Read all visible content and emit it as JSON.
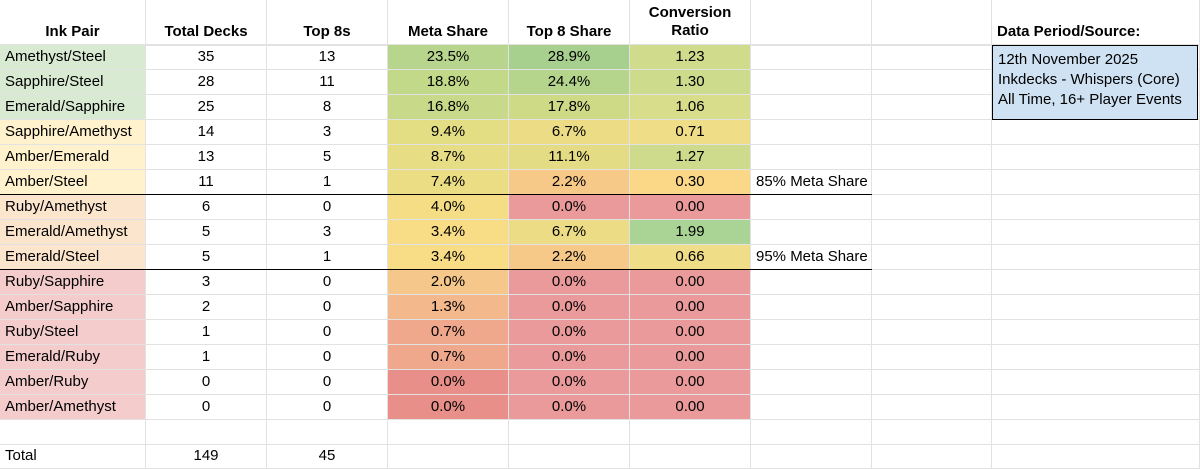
{
  "headers": {
    "ink_pair": "Ink Pair",
    "total_decks": "Total Decks",
    "top8s": "Top 8s",
    "meta_share": "Meta Share",
    "top8_share": "Top 8 Share",
    "conversion_ratio_line1": "Conversion",
    "conversion_ratio_line2": "Ratio"
  },
  "rows": [
    {
      "pair": "Amethyst/Steel",
      "decks": "35",
      "top8s": "13",
      "meta": "23.5%",
      "top8share": "28.9%",
      "ratio": "1.23"
    },
    {
      "pair": "Sapphire/Steel",
      "decks": "28",
      "top8s": "11",
      "meta": "18.8%",
      "top8share": "24.4%",
      "ratio": "1.30"
    },
    {
      "pair": "Emerald/Sapphire",
      "decks": "25",
      "top8s": "8",
      "meta": "16.8%",
      "top8share": "17.8%",
      "ratio": "1.06"
    },
    {
      "pair": "Sapphire/Amethyst",
      "decks": "14",
      "top8s": "3",
      "meta": "9.4%",
      "top8share": "6.7%",
      "ratio": "0.71"
    },
    {
      "pair": "Amber/Emerald",
      "decks": "13",
      "top8s": "5",
      "meta": "8.7%",
      "top8share": "11.1%",
      "ratio": "1.27"
    },
    {
      "pair": "Amber/Steel",
      "decks": "11",
      "top8s": "1",
      "meta": "7.4%",
      "top8share": "2.2%",
      "ratio": "0.30"
    },
    {
      "pair": "Ruby/Amethyst",
      "decks": "6",
      "top8s": "0",
      "meta": "4.0%",
      "top8share": "0.0%",
      "ratio": "0.00"
    },
    {
      "pair": "Emerald/Amethyst",
      "decks": "5",
      "top8s": "3",
      "meta": "3.4%",
      "top8share": "6.7%",
      "ratio": "1.99"
    },
    {
      "pair": "Emerald/Steel",
      "decks": "5",
      "top8s": "1",
      "meta": "3.4%",
      "top8share": "2.2%",
      "ratio": "0.66"
    },
    {
      "pair": "Ruby/Sapphire",
      "decks": "3",
      "top8s": "0",
      "meta": "2.0%",
      "top8share": "0.0%",
      "ratio": "0.00"
    },
    {
      "pair": "Amber/Sapphire",
      "decks": "2",
      "top8s": "0",
      "meta": "1.3%",
      "top8share": "0.0%",
      "ratio": "0.00"
    },
    {
      "pair": "Ruby/Steel",
      "decks": "1",
      "top8s": "0",
      "meta": "0.7%",
      "top8share": "0.0%",
      "ratio": "0.00"
    },
    {
      "pair": "Emerald/Ruby",
      "decks": "1",
      "top8s": "0",
      "meta": "0.7%",
      "top8share": "0.0%",
      "ratio": "0.00"
    },
    {
      "pair": "Amber/Ruby",
      "decks": "0",
      "top8s": "0",
      "meta": "0.0%",
      "top8share": "0.0%",
      "ratio": "0.00"
    },
    {
      "pair": "Amber/Amethyst",
      "decks": "0",
      "top8s": "0",
      "meta": "0.0%",
      "top8share": "0.0%",
      "ratio": "0.00"
    }
  ],
  "totals": {
    "label": "Total",
    "decks": "149",
    "top8s": "45"
  },
  "annotations": {
    "meta85": "85% Meta Share",
    "meta95": "95% Meta Share"
  },
  "info": {
    "title": "Data Period/Source:",
    "line1": "12th November 2025",
    "line2": "Inkdecks - Whispers (Core)",
    "line3": "All Time, 16+ Player Events"
  },
  "colors": {
    "pair_fill": [
      "#d9ead3",
      "#d9ead3",
      "#d9ead3",
      "#fff2cc",
      "#fff2cc",
      "#fff2cc",
      "#fce5cd",
      "#fce5cd",
      "#fce5cd",
      "#f4cccc",
      "#f4cccc",
      "#f4cccc",
      "#f4cccc",
      "#f4cccc",
      "#f4cccc"
    ],
    "meta_fill": [
      "#b7d58c",
      "#c3d98a",
      "#c8da89",
      "#e3dd84",
      "#e6dd84",
      "#ebdd84",
      "#f5dd86",
      "#f8dc86",
      "#f8dc86",
      "#f5c78a",
      "#f3b88b",
      "#f0a88c",
      "#f0a88c",
      "#e88f89",
      "#e88f89"
    ],
    "top8_fill": [
      "#a7d08e",
      "#b6d58c",
      "#cfda87",
      "#ecdc85",
      "#e4db85",
      "#f6c989",
      "#ea9a9a",
      "#ecdc85",
      "#f6c989",
      "#ea9a9a",
      "#ea9a9a",
      "#ea9a9a",
      "#ea9a9a",
      "#ea9a9a",
      "#ea9a9a"
    ],
    "ratio_fill": [
      "#d0dc8c",
      "#ccdb8c",
      "#d8dd8b",
      "#f0dd88",
      "#cedb8c",
      "#fbd888",
      "#ea9a9a",
      "#aad496",
      "#f0dd88",
      "#ea9a9a",
      "#ea9a9a",
      "#ea9a9a",
      "#ea9a9a",
      "#ea9a9a",
      "#ea9a9a"
    ],
    "info_box": "#cfe2f3"
  }
}
